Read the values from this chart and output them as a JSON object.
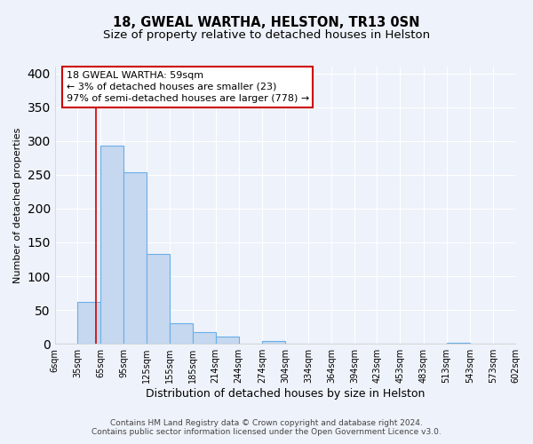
{
  "title": "18, GWEAL WARTHA, HELSTON, TR13 0SN",
  "subtitle": "Size of property relative to detached houses in Helston",
  "xlabel": "Distribution of detached houses by size in Helston",
  "ylabel": "Number of detached properties",
  "bar_edges": [
    6,
    35,
    65,
    95,
    125,
    155,
    185,
    214,
    244,
    274,
    304,
    334,
    364,
    394,
    423,
    453,
    483,
    513,
    543,
    573,
    602
  ],
  "bar_heights": [
    0,
    62,
    293,
    254,
    133,
    30,
    18,
    11,
    0,
    4,
    0,
    0,
    0,
    0,
    0,
    0,
    0,
    1,
    0,
    0
  ],
  "bar_color": "#c5d8f0",
  "bar_edge_color": "#6aaee8",
  "bar_linewidth": 0.8,
  "property_line_x": 59,
  "property_line_color": "#cc0000",
  "annotation_text": "18 GWEAL WARTHA: 59sqm\n← 3% of detached houses are smaller (23)\n97% of semi-detached houses are larger (778) →",
  "annotation_box_color": "#ffffff",
  "annotation_box_edge_color": "#cc0000",
  "ylim": [
    0,
    410
  ],
  "tick_labels": [
    "6sqm",
    "35sqm",
    "65sqm",
    "95sqm",
    "125sqm",
    "155sqm",
    "185sqm",
    "214sqm",
    "244sqm",
    "274sqm",
    "304sqm",
    "334sqm",
    "364sqm",
    "394sqm",
    "423sqm",
    "453sqm",
    "483sqm",
    "513sqm",
    "543sqm",
    "573sqm",
    "602sqm"
  ],
  "background_color": "#eef2fa",
  "grid_color": "#ffffff",
  "footer_line1": "Contains HM Land Registry data © Crown copyright and database right 2024.",
  "footer_line2": "Contains public sector information licensed under the Open Government Licence v3.0.",
  "title_fontsize": 10.5,
  "subtitle_fontsize": 9.5,
  "xlabel_fontsize": 9,
  "ylabel_fontsize": 8,
  "tick_fontsize": 7,
  "annotation_fontsize": 8,
  "footer_fontsize": 6.5
}
